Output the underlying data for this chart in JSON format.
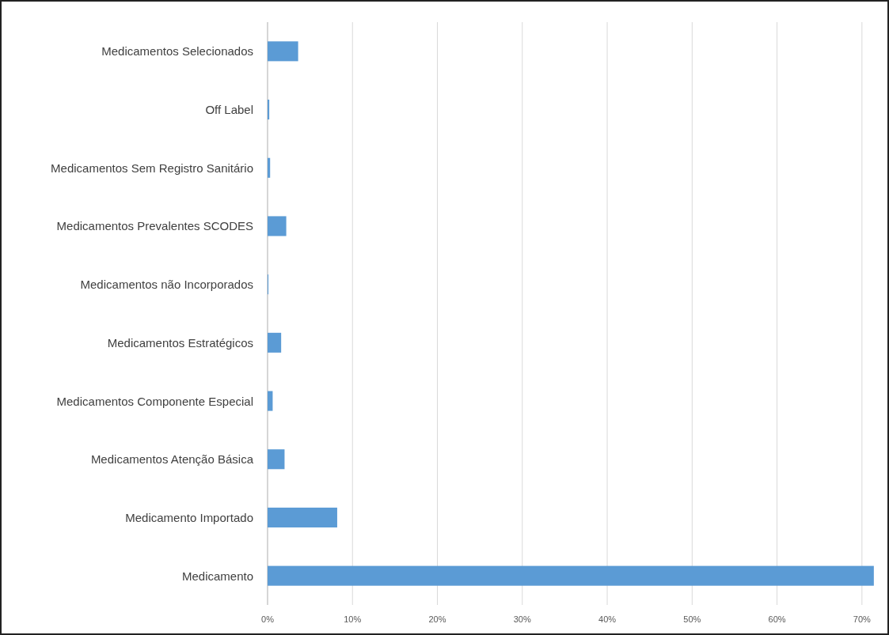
{
  "chart_data": {
    "type": "bar",
    "orientation": "horizontal",
    "categories": [
      "Medicamentos Selecionados",
      "Off Label",
      "Medicamentos Sem Registro Sanitário",
      "Medicamentos Prevalentes SCODES",
      "Medicamentos não Incorporados",
      "Medicamentos Estratégicos",
      "Medicamentos Componente Especial",
      "Medicamentos Atenção Básica",
      "Medicamento Importado",
      "Medicamento"
    ],
    "values": [
      3.6,
      0.2,
      0.3,
      2.2,
      0.1,
      1.6,
      0.6,
      2.0,
      8.2,
      71.4
    ],
    "color": "#5b9bd5",
    "xlim": [
      0,
      73
    ],
    "xticks": [
      {
        "value": 0,
        "label": "0%"
      },
      {
        "value": 10,
        "label": "10%"
      },
      {
        "value": 20,
        "label": "20%"
      },
      {
        "value": 30,
        "label": "30%"
      },
      {
        "value": 40,
        "label": "40%"
      },
      {
        "value": 50,
        "label": "50%"
      },
      {
        "value": 60,
        "label": "60%"
      },
      {
        "value": 70,
        "label": "70%"
      }
    ],
    "grid": "x"
  }
}
